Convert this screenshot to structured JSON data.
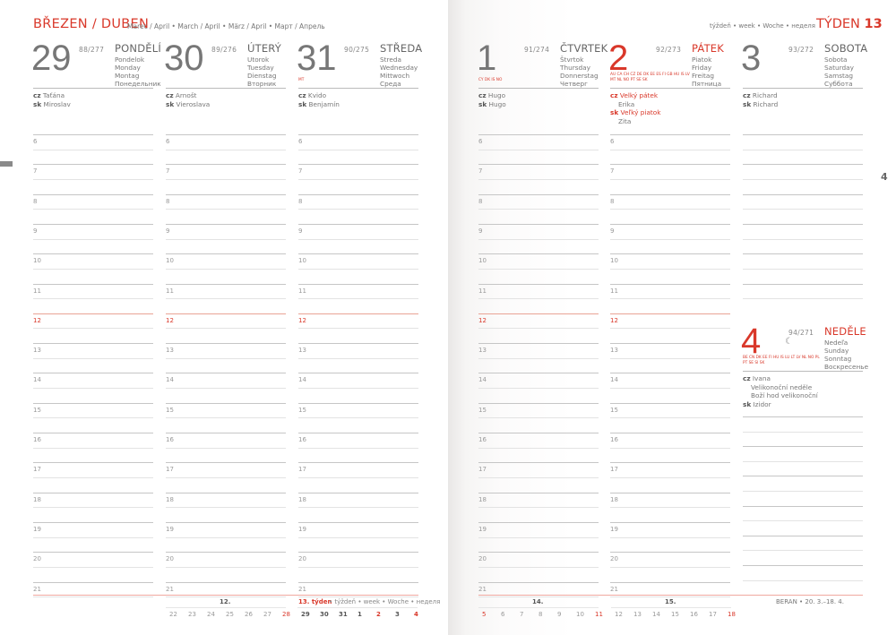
{
  "header": {
    "title": "BŘEZEN / DUBEN",
    "subtitle": "Marec / April • March / April • März / April • Март / Апрель",
    "week_label": "týždeň • week • Woche • неделя",
    "week_title": "TÝDEN",
    "week_number": "13",
    "side_page_number": "4"
  },
  "colors": {
    "accent": "#d9382a",
    "text": "#666666",
    "line": "#c6c6c6"
  },
  "hours": [
    "6",
    "7",
    "8",
    "9",
    "10",
    "11",
    "12",
    "13",
    "14",
    "15",
    "16",
    "17",
    "18",
    "19",
    "20",
    "21"
  ],
  "days": [
    {
      "num": "29",
      "doy": "88/277",
      "name": "PONDĚLÍ",
      "trans": [
        "Pondelok",
        "Monday",
        "Montag",
        "Понедельник"
      ],
      "holidays": "",
      "red": false,
      "names": [
        {
          "lang": "cz",
          "text": "Taťána",
          "extra": []
        },
        {
          "lang": "sk",
          "text": "Miroslav",
          "extra": []
        }
      ]
    },
    {
      "num": "30",
      "doy": "89/276",
      "name": "ÚTERÝ",
      "trans": [
        "Utorok",
        "Tuesday",
        "Dienstag",
        "Вторник"
      ],
      "holidays": "",
      "red": false,
      "names": [
        {
          "lang": "cz",
          "text": "Arnošt",
          "extra": []
        },
        {
          "lang": "sk",
          "text": "Vieroslava",
          "extra": []
        }
      ]
    },
    {
      "num": "31",
      "doy": "90/275",
      "name": "STŘEDA",
      "trans": [
        "Streda",
        "Wednesday",
        "Mittwoch",
        "Среда"
      ],
      "holidays": "MT",
      "red": false,
      "names": [
        {
          "lang": "cz",
          "text": "Kvido",
          "extra": []
        },
        {
          "lang": "sk",
          "text": "Benjamín",
          "extra": []
        }
      ]
    },
    {
      "num": "1",
      "doy": "91/274",
      "name": "ČTVRTEK",
      "trans": [
        "Štvrtok",
        "Thursday",
        "Donnerstag",
        "Четверг"
      ],
      "holidays": "CY DK IS NO",
      "red": false,
      "names": [
        {
          "lang": "cz",
          "text": "Hugo",
          "extra": []
        },
        {
          "lang": "sk",
          "text": "Hugo",
          "extra": []
        }
      ]
    },
    {
      "num": "2",
      "doy": "92/273",
      "name": "PÁTEK",
      "trans": [
        "Piatok",
        "Friday",
        "Freitag",
        "Пятница"
      ],
      "holidays": "AU CA CH CZ DE DK EE ES FI GB HU IS LV MT NL NO PT SE SK",
      "red": true,
      "names": [
        {
          "lang": "cz",
          "text": "Velký pátek",
          "red": true,
          "extra": [
            "Erika"
          ]
        },
        {
          "lang": "sk",
          "text": "Veľký piatok",
          "red": true,
          "extra": [
            "Zita"
          ]
        }
      ]
    },
    {
      "num": "3",
      "doy": "93/272",
      "name": "SOBOTA",
      "trans": [
        "Sobota",
        "Saturday",
        "Samstag",
        "Суббота"
      ],
      "holidays": "",
      "red": false,
      "names": [
        {
          "lang": "cz",
          "text": "Richard",
          "extra": []
        },
        {
          "lang": "sk",
          "text": "Richard",
          "extra": []
        }
      ]
    },
    {
      "num": "4",
      "doy": "94/271",
      "name": "NEDĚLE",
      "trans": [
        "Nedeľa",
        "Sunday",
        "Sonntag",
        "Воскресенье"
      ],
      "holidays": "BE CN DK EE FI HU IS LU LT LV NL NO PL PT SE SI SK",
      "red": true,
      "moon": "moon-last-quarter-icon",
      "names": [
        {
          "lang": "cz",
          "text": "Ivana",
          "extra": [
            "Velikonoční neděle",
            "Boží hod velikonoční"
          ]
        },
        {
          "lang": "sk",
          "text": "Izidor",
          "extra": []
        }
      ]
    }
  ],
  "footer": {
    "weeks": [
      {
        "label": "12.",
        "dates": [
          "22",
          "23",
          "24",
          "25",
          "26",
          "27",
          "28"
        ]
      },
      {
        "label": "13. týden",
        "label_rest": " • týždeň • week • Woche • неделя",
        "dates": [
          "29",
          "30",
          "31",
          "1",
          "2",
          "3",
          "4"
        ],
        "current": true
      },
      {
        "label": "14.",
        "dates": [
          "5",
          "6",
          "7",
          "8",
          "9",
          "10",
          "11"
        ]
      },
      {
        "label": "15.",
        "dates": [
          "12",
          "13",
          "14",
          "15",
          "16",
          "17",
          "18"
        ]
      }
    ],
    "red_dates": [
      "28",
      "2",
      "4",
      "5",
      "11",
      "18"
    ],
    "sign": "BERAN • 20. 3.–18. 4."
  }
}
